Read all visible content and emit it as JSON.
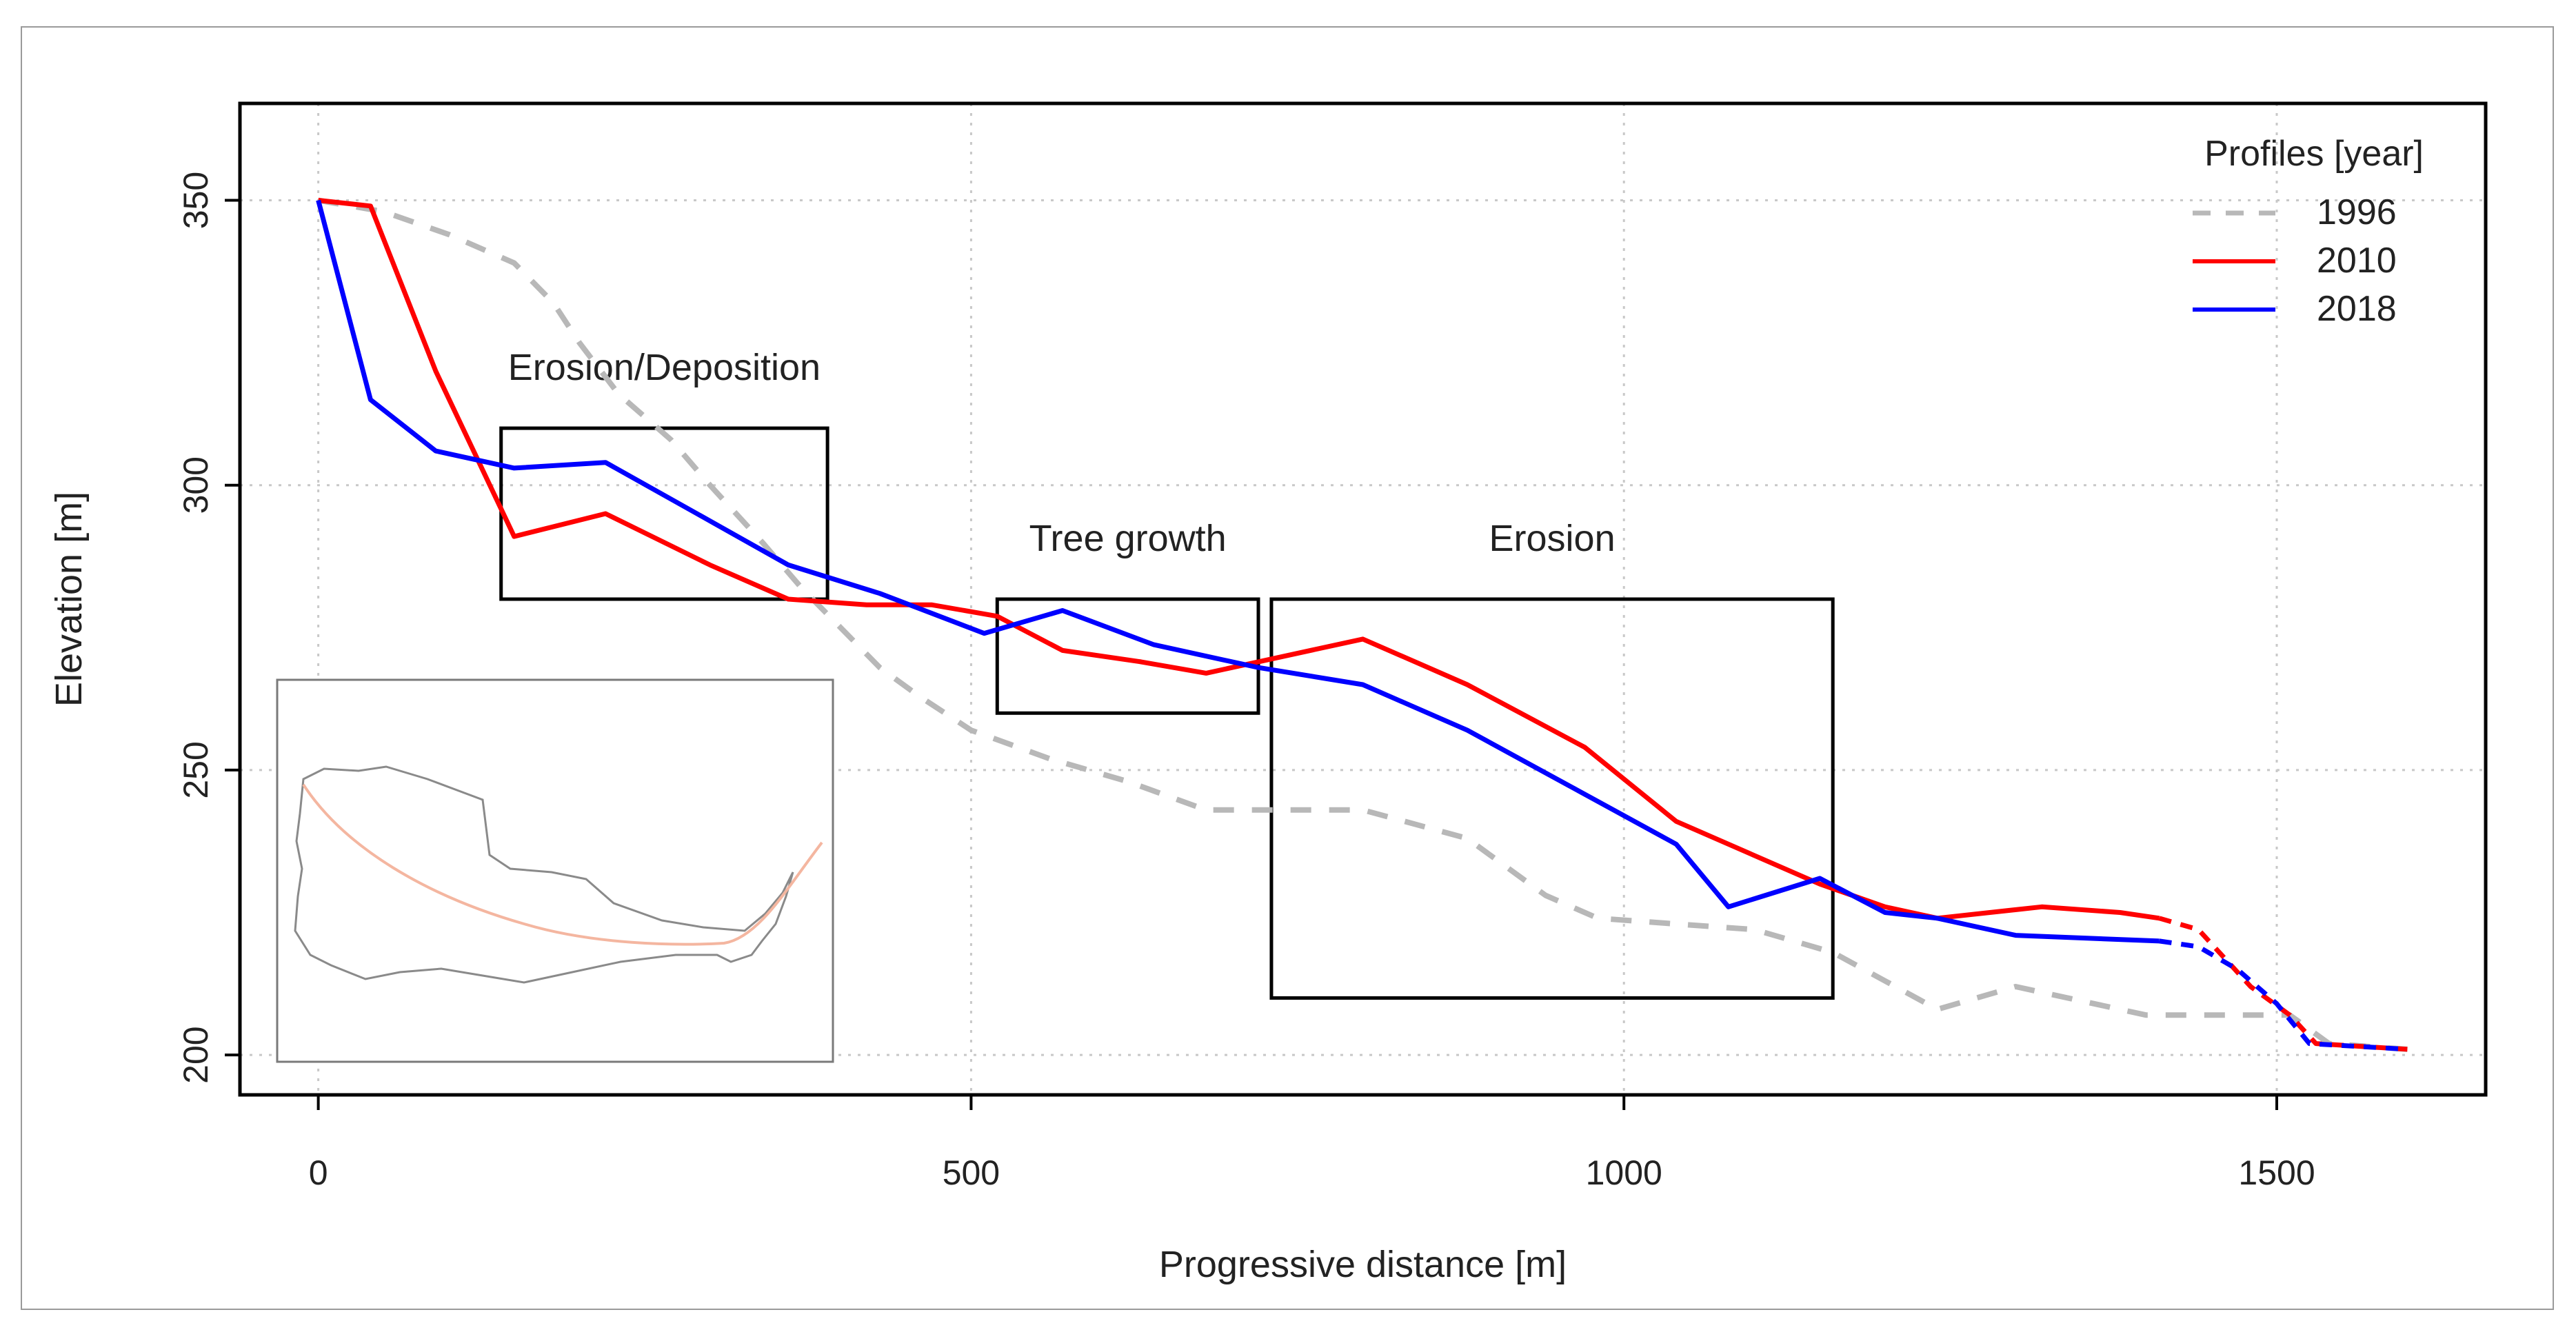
{
  "chart_data": {
    "type": "line",
    "title": "",
    "xlabel": "Progressive distance [m]",
    "ylabel": "Elevation [m]",
    "xlim": [
      -60,
      1660
    ],
    "ylim": [
      193,
      367
    ],
    "xticks": [
      0,
      500,
      1000,
      1500
    ],
    "xtick_labels": [
      "0",
      "500",
      "1000",
      "1500"
    ],
    "yticks": [
      200,
      250,
      300,
      350
    ],
    "ytick_labels": [
      "200",
      "250",
      "300",
      "350"
    ],
    "grid": true,
    "legend": {
      "title": "Profiles [year]",
      "placement": "top-right",
      "entries": [
        {
          "label": "1996",
          "color": "#b8b8b8",
          "style": "dashed"
        },
        {
          "label": "2010",
          "color": "#ff0000",
          "style": "solid"
        },
        {
          "label": "2018",
          "color": "#0000ff",
          "style": "solid"
        }
      ]
    },
    "series": [
      {
        "name": "1996",
        "color": "#b8b8b8",
        "style": "dashed",
        "x": [
          0,
          50,
          100,
          150,
          180,
          200,
          230,
          270,
          300,
          340,
          370,
          400,
          430,
          460,
          500,
          560,
          620,
          680,
          740,
          800,
          880,
          940,
          980,
          1040,
          1100,
          1160,
          1200,
          1240,
          1300,
          1340,
          1400,
          1440,
          1490,
          1510,
          1540,
          1600
        ],
        "y": [
          350,
          348,
          344,
          339,
          332,
          325,
          316,
          308,
          300,
          290,
          282,
          275,
          268,
          263,
          257,
          252,
          248,
          243,
          243,
          243,
          238,
          228,
          224,
          223,
          222,
          218,
          213,
          208,
          212,
          210,
          207,
          207,
          207,
          207,
          202,
          201
        ]
      },
      {
        "name": "2010",
        "color": "#ff0000",
        "style": "solid",
        "x": [
          0,
          40,
          90,
          150,
          220,
          300,
          360,
          420,
          470,
          520,
          570,
          630,
          680,
          720,
          800,
          880,
          970,
          1040,
          1100,
          1150,
          1200,
          1240,
          1320,
          1380,
          1410
        ],
        "y": [
          350,
          349,
          320,
          291,
          295,
          286,
          280,
          279,
          279,
          277,
          271,
          269,
          267,
          269,
          273,
          265,
          254,
          241,
          235,
          230,
          226,
          224,
          226,
          225,
          224
        ]
      },
      {
        "name": "2010 (extension)",
        "color": "#ff0000",
        "style": "dashed",
        "x": [
          1410,
          1440,
          1480,
          1510,
          1530,
          1600
        ],
        "y": [
          224,
          222,
          212,
          207,
          202,
          201
        ]
      },
      {
        "name": "2018",
        "color": "#0000ff",
        "style": "solid",
        "x": [
          0,
          40,
          90,
          150,
          220,
          290,
          360,
          430,
          510,
          570,
          640,
          720,
          800,
          880,
          960,
          1040,
          1080,
          1150,
          1200,
          1240,
          1300,
          1410
        ],
        "y": [
          350,
          315,
          306,
          303,
          304,
          295,
          286,
          281,
          274,
          278,
          272,
          268,
          265,
          257,
          247,
          237,
          226,
          231,
          225,
          224,
          221,
          220
        ]
      },
      {
        "name": "2018 (extension)",
        "color": "#0000ff",
        "style": "dashed",
        "x": [
          1410,
          1440,
          1470,
          1500,
          1525,
          1600
        ],
        "y": [
          220,
          219,
          215,
          209,
          202,
          201
        ]
      }
    ],
    "annotation_boxes": [
      {
        "label": "Erosion/Deposition",
        "x_range": [
          140,
          390
        ],
        "y_range": [
          280,
          310
        ]
      },
      {
        "label": "Tree growth",
        "x_range": [
          520,
          720
        ],
        "y_range": [
          260,
          280
        ]
      },
      {
        "label": "Erosion",
        "x_range": [
          730,
          1160
        ],
        "y_range": [
          210,
          280
        ]
      }
    ],
    "inset": {
      "description_type": "catchment outline map",
      "outline_color": "#8a8a8a",
      "channel_color": "#f4b6a0"
    }
  }
}
